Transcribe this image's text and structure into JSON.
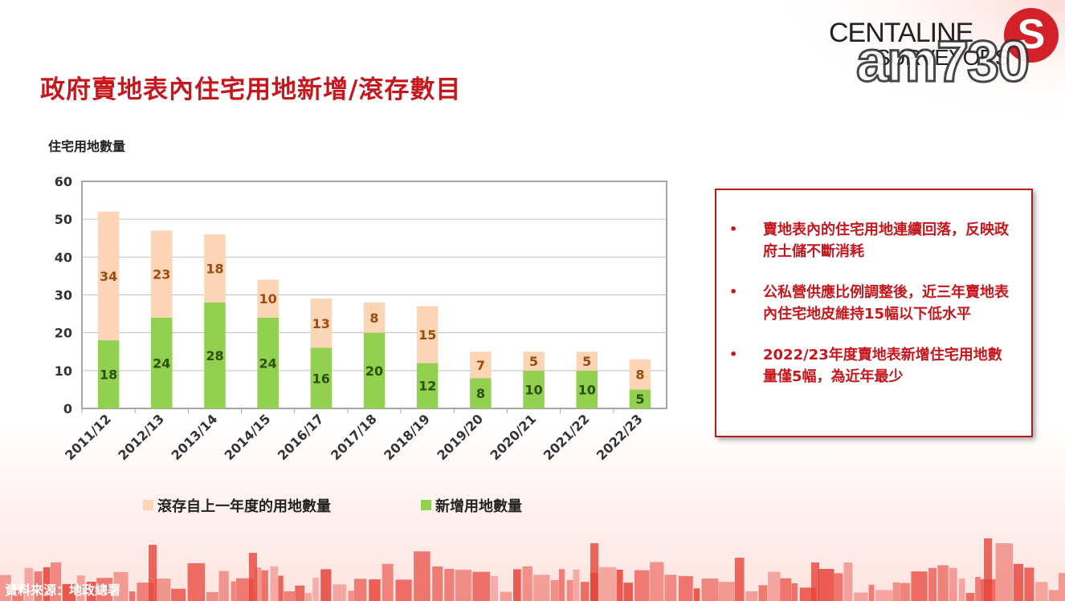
{
  "header": {
    "title": "政府賣地表內住宅用地新增/滾存數目",
    "brand_name": "CENTALINE",
    "brand_sub": "SURVEYORS",
    "brand_logo_glyph": "S",
    "watermark": "am730"
  },
  "chart_data": {
    "type": "bar",
    "stacked": true,
    "ylabel": "住宅用地數量",
    "ylim": [
      0,
      60
    ],
    "yticks": [
      0,
      10,
      20,
      30,
      40,
      50,
      60
    ],
    "grid": true,
    "legend_position": "bottom",
    "categories": [
      "2011/12",
      "2012/13",
      "2013/14",
      "2014/15",
      "2016/17",
      "2017/18",
      "2018/19",
      "2019/20",
      "2020/21",
      "2021/22",
      "2022/23"
    ],
    "series": [
      {
        "name": "新增用地數量",
        "color": "#92d050",
        "values": [
          18,
          24,
          28,
          24,
          16,
          20,
          12,
          8,
          10,
          10,
          5
        ]
      },
      {
        "name": "滾存自上一年度的用地數量",
        "color": "#fbd5b5",
        "values": [
          34,
          23,
          18,
          10,
          13,
          8,
          15,
          7,
          5,
          5,
          8
        ]
      }
    ],
    "legend_order": [
      1,
      0
    ]
  },
  "notes": {
    "bullet": "•",
    "items": [
      "賣地表內的住宅用地連續回落，反映政府土儲不斷消耗",
      "公私營供應比例調整後，近三年賣地表內住宅地皮維持15幅以下低水平",
      "2022/23年度賣地表新增住宅用地數量僅5幅，為近年最少"
    ]
  },
  "footer": {
    "source": "資料來源：地政總署"
  },
  "colors": {
    "accent": "#c8161d",
    "skyline": "#e8443a"
  }
}
